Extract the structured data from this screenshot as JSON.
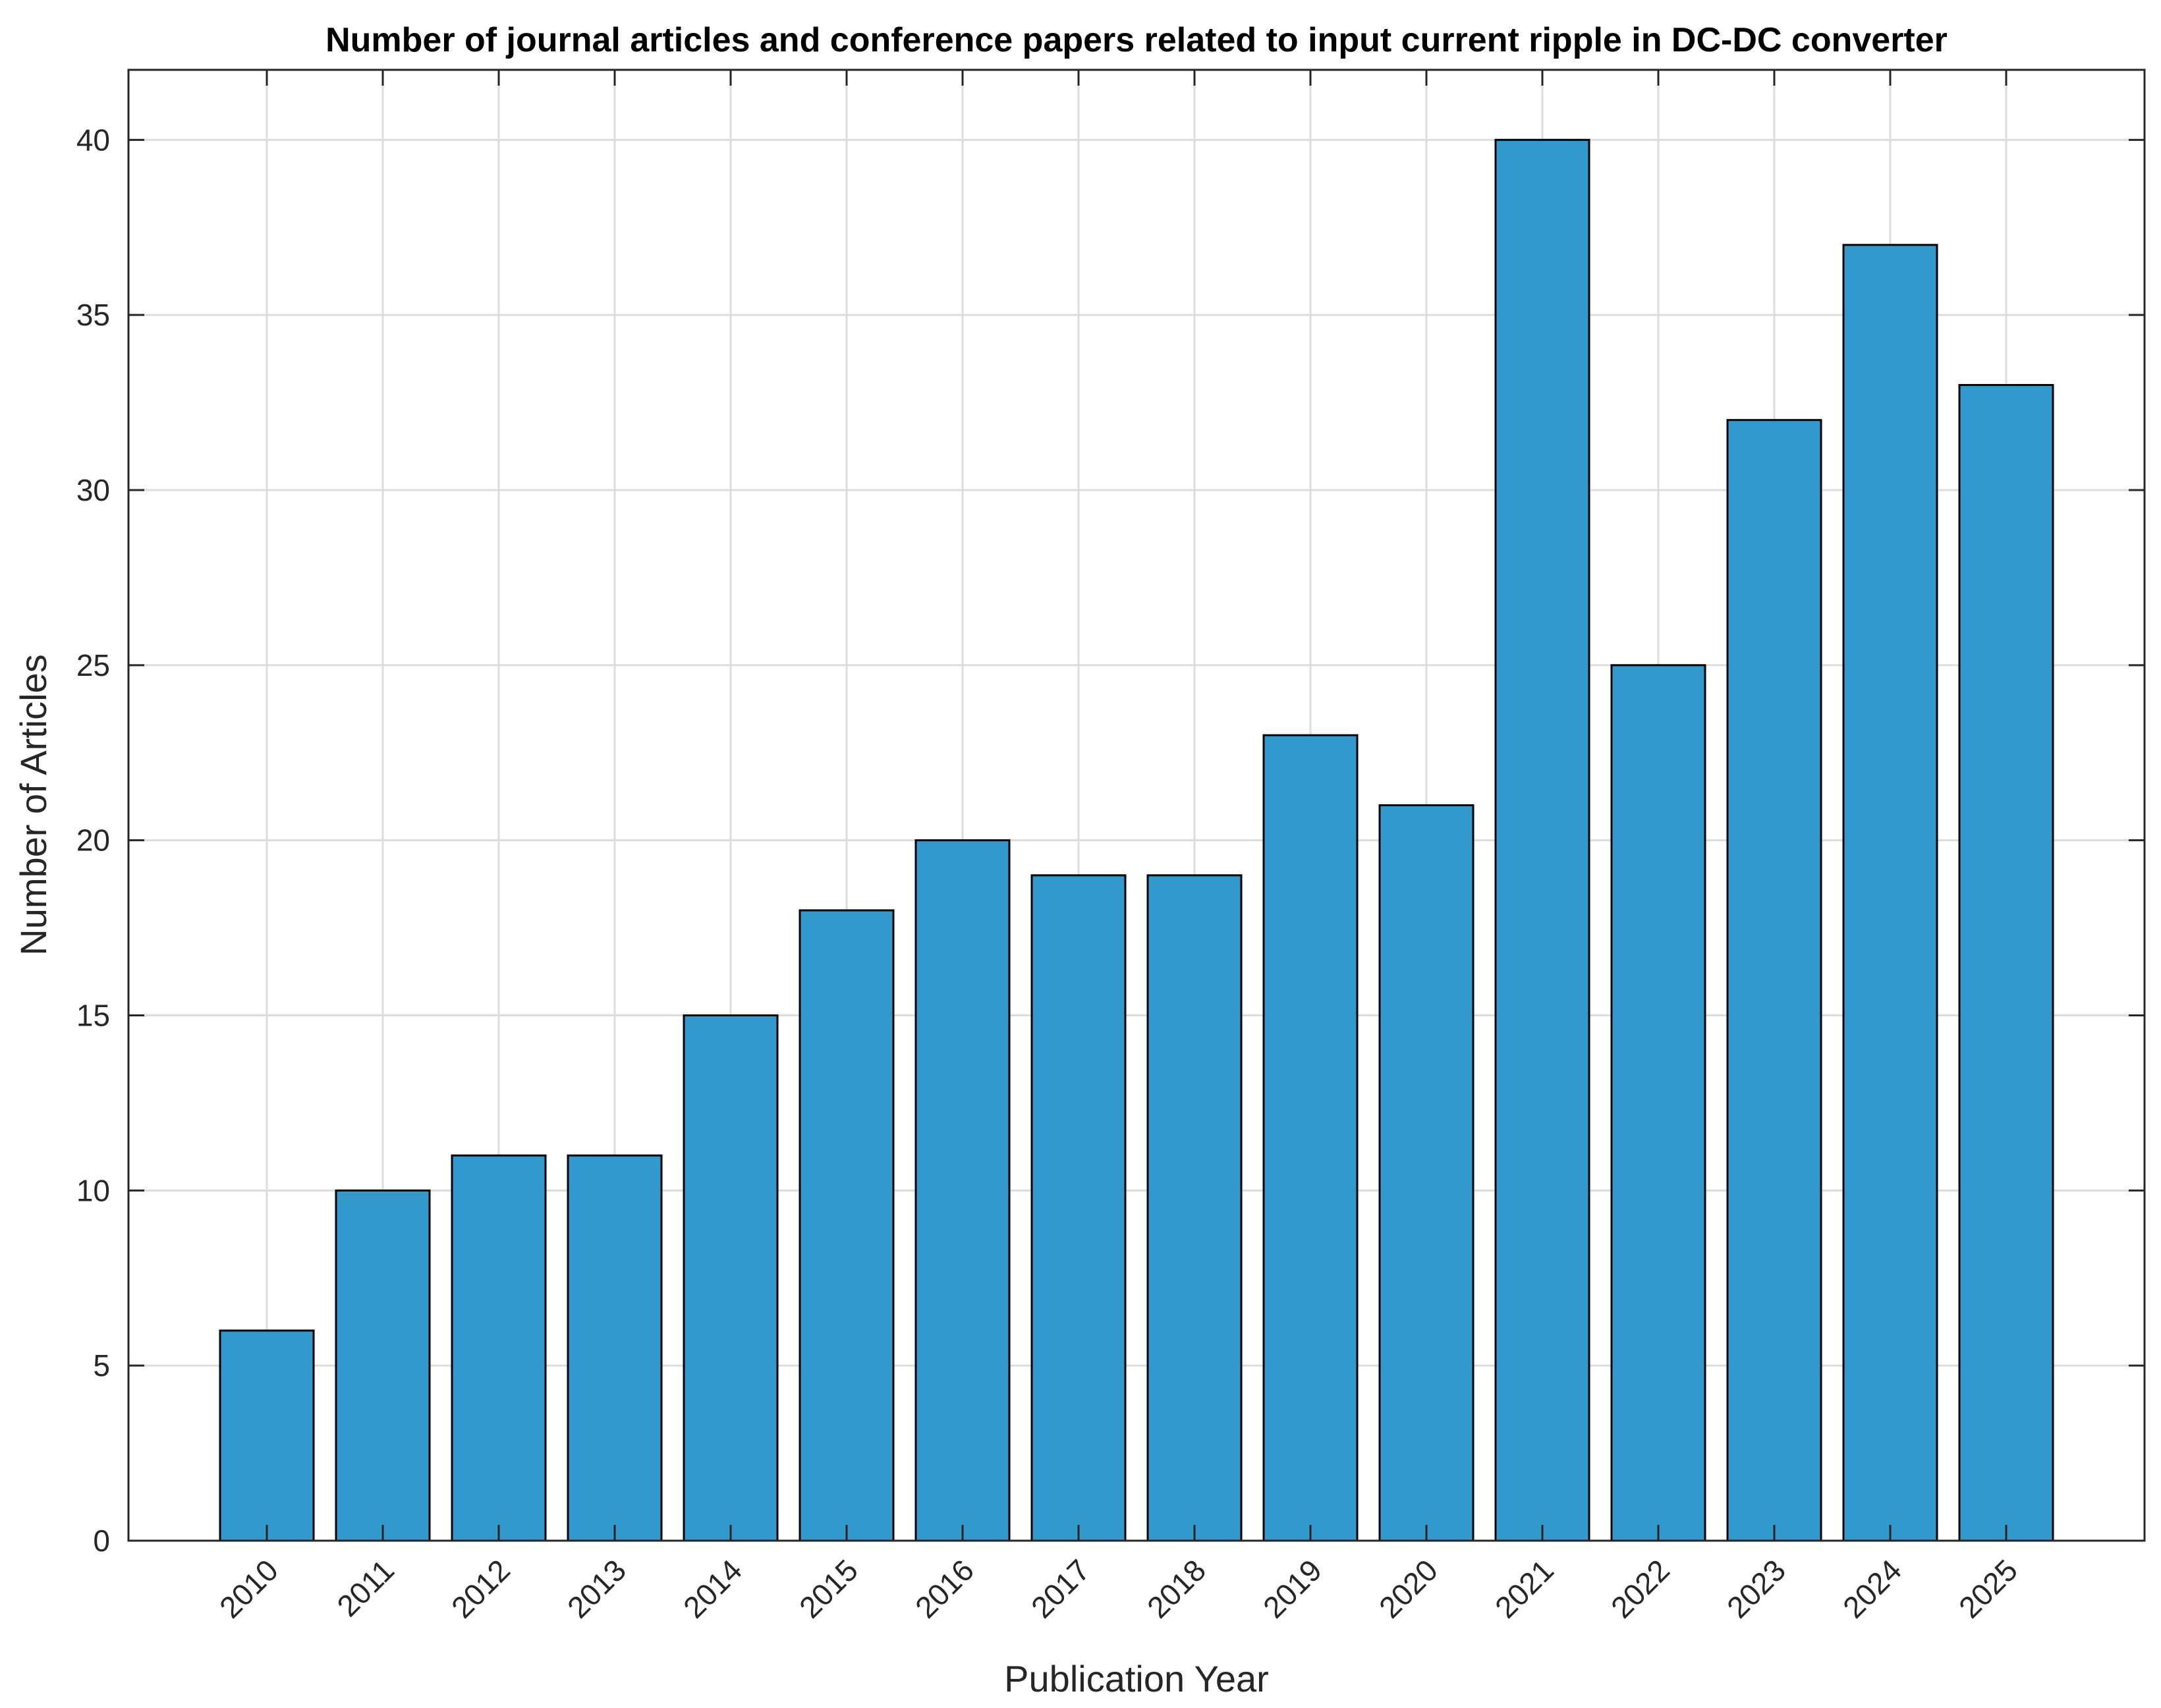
{
  "chart_data": {
    "type": "bar",
    "title": "Number of journal articles and conference papers related to input current ripple in DC-DC converter",
    "xlabel": "Publication Year",
    "ylabel": "Number of Articles",
    "categories": [
      "2010",
      "2011",
      "2012",
      "2013",
      "2014",
      "2015",
      "2016",
      "2017",
      "2018",
      "2019",
      "2020",
      "2021",
      "2022",
      "2023",
      "2024",
      "2025"
    ],
    "values": [
      6,
      10,
      11,
      11,
      15,
      18,
      20,
      19,
      19,
      23,
      21,
      40,
      25,
      32,
      37,
      33
    ],
    "ylim": [
      0,
      42
    ],
    "yticks": [
      "0",
      "5",
      "10",
      "15",
      "20",
      "25",
      "30",
      "35",
      "40"
    ],
    "grid": true,
    "bar_color": "#3399cc"
  }
}
